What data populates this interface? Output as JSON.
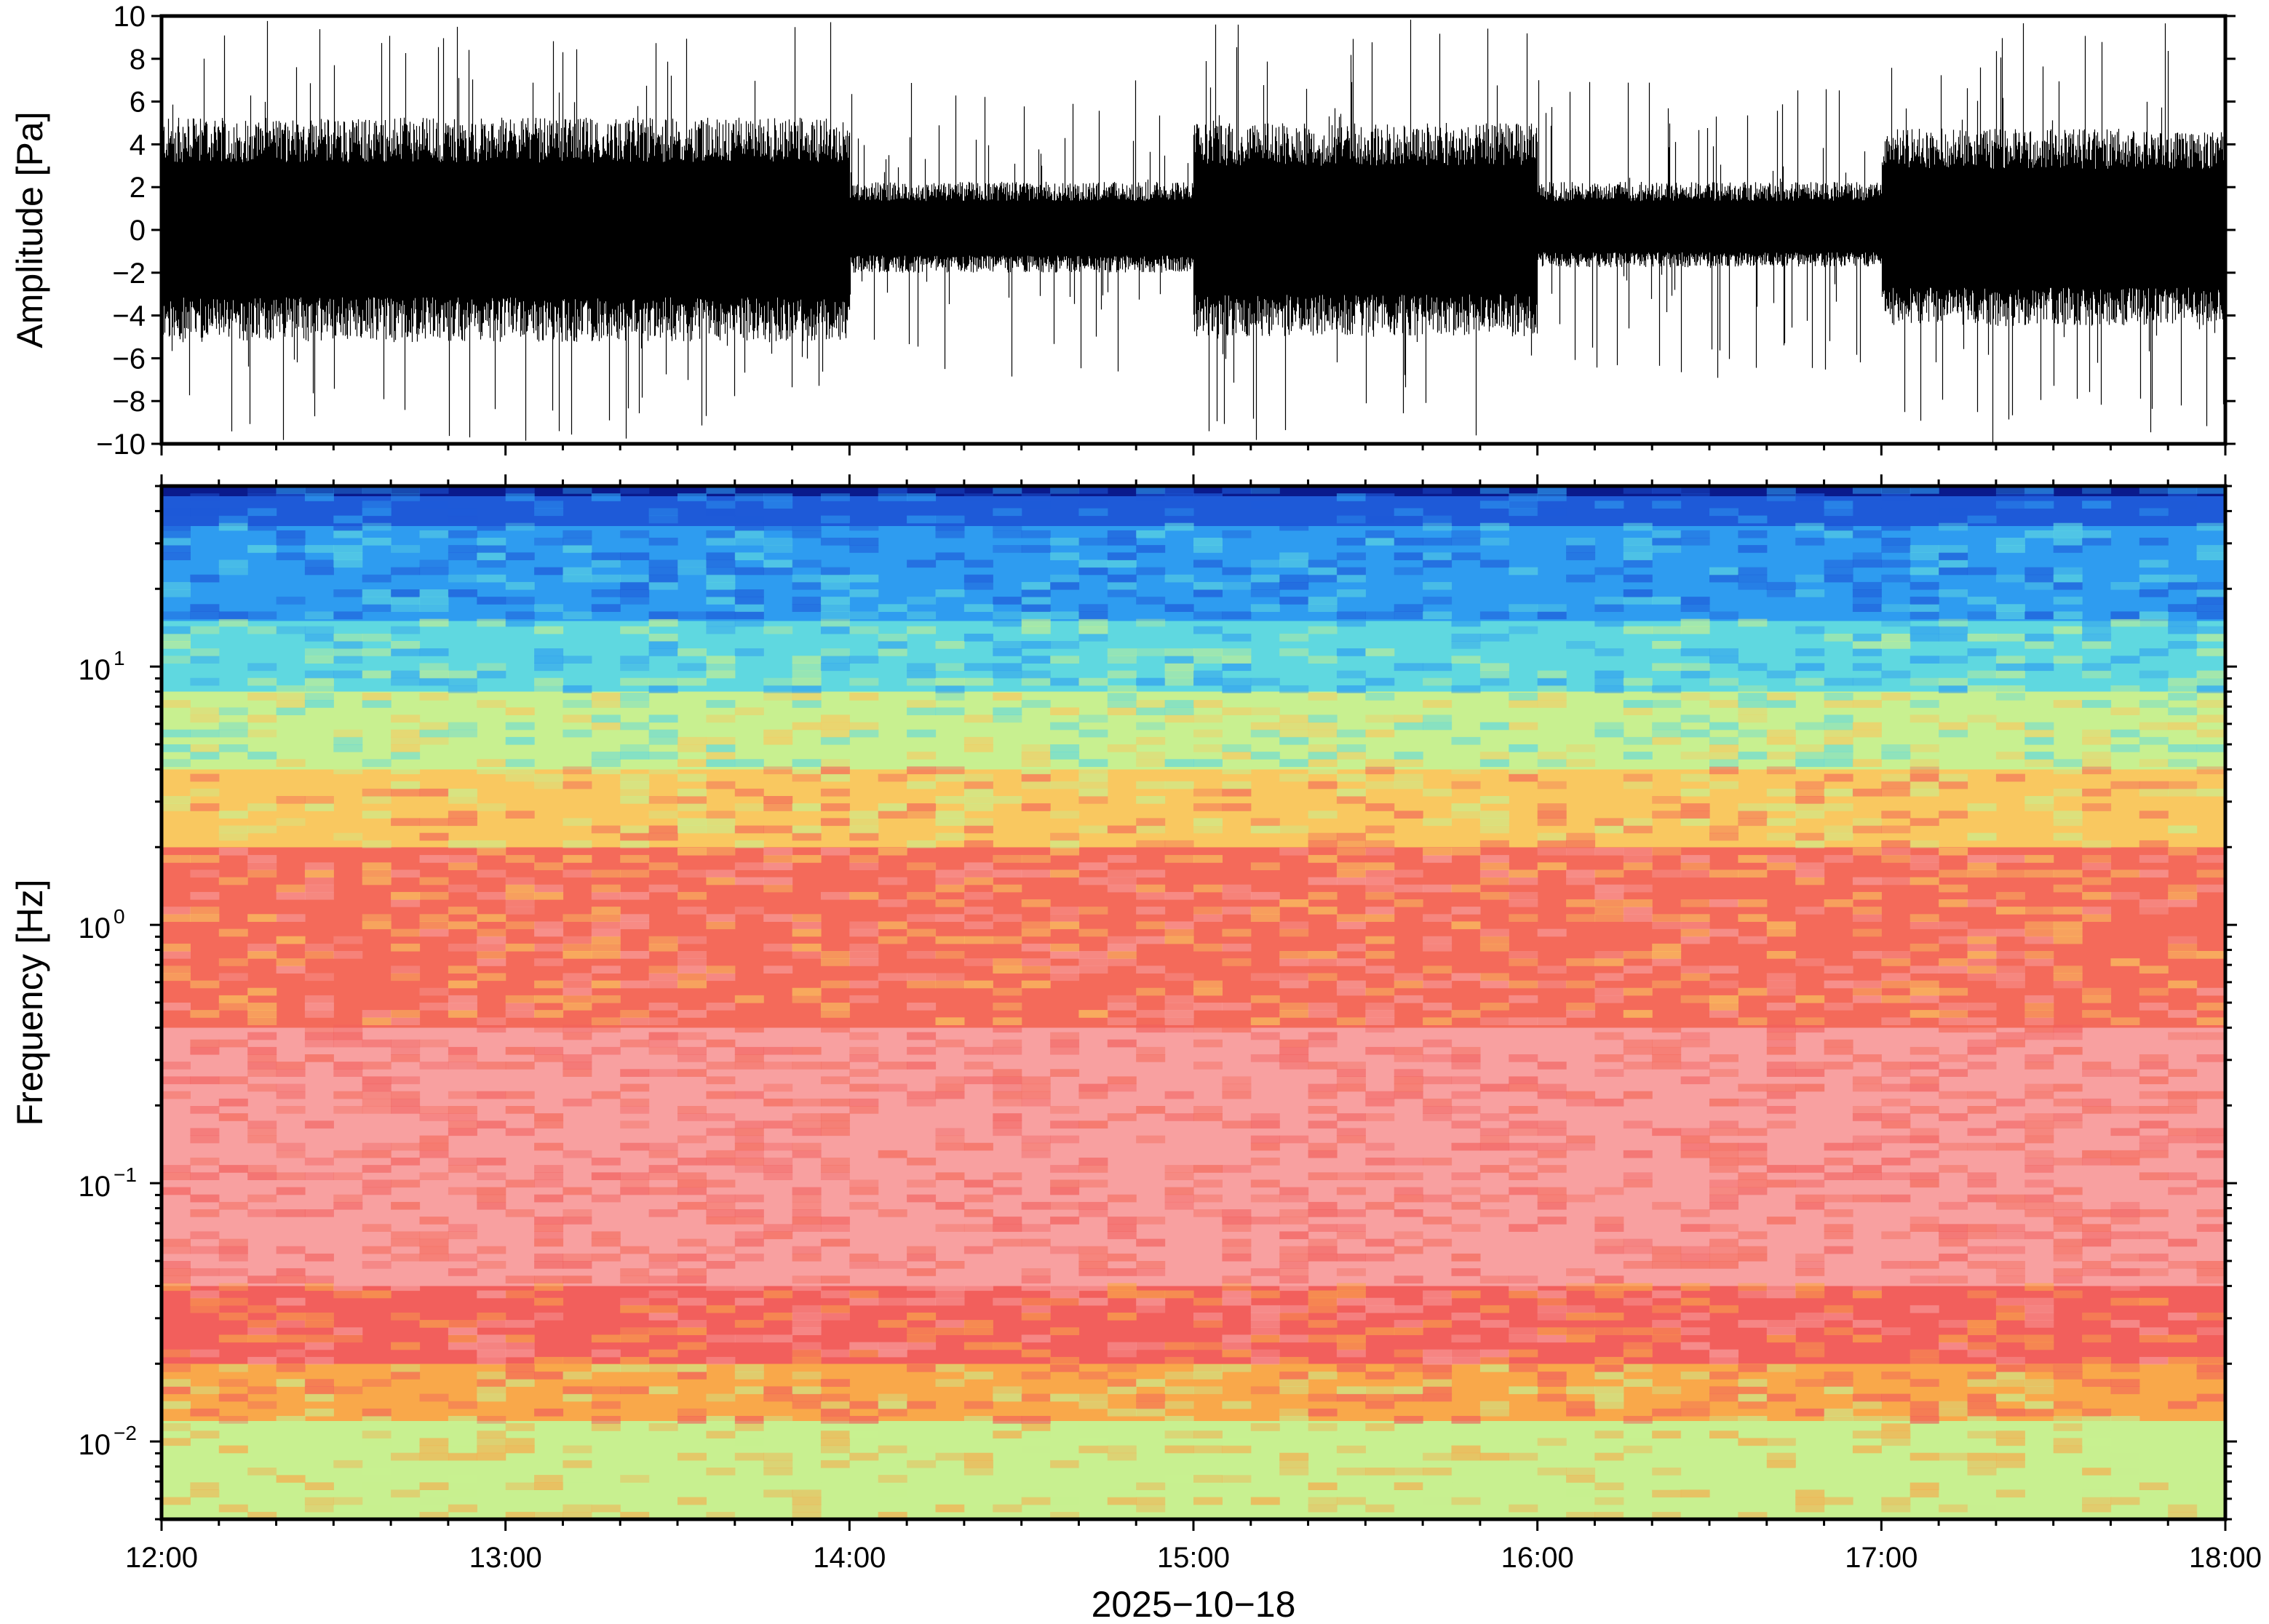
{
  "chart_data": [
    {
      "type": "line",
      "ylabel": "Amplitude [Pa]",
      "ylim": [
        -10,
        10
      ],
      "yticks": [
        "10",
        "8",
        "6",
        "4",
        "2",
        "0",
        "−2",
        "−4",
        "−6",
        "−8",
        "−10"
      ],
      "ytick_values": [
        10,
        8,
        6,
        4,
        2,
        0,
        -2,
        -4,
        -6,
        -8,
        -10
      ],
      "xlim": [
        "12:00",
        "18:00"
      ],
      "segments": [
        {
          "start": "12:00",
          "end": "14:00",
          "envelope": [
            -4.2,
            4.2
          ],
          "peak": 10
        },
        {
          "start": "14:00",
          "end": "15:00",
          "envelope": [
            -1.6,
            1.8
          ],
          "peak": 7
        },
        {
          "start": "15:00",
          "end": "16:00",
          "envelope": [
            -4.0,
            4.0
          ],
          "peak": 10
        },
        {
          "start": "16:00",
          "end": "17:00",
          "envelope": [
            -1.4,
            1.8
          ],
          "peak": 7
        },
        {
          "start": "17:00",
          "end": "18:00",
          "envelope": [
            -3.6,
            3.8
          ],
          "peak": 10
        }
      ],
      "color": "#000000"
    },
    {
      "type": "heatmap",
      "ylabel": "Frequency [Hz]",
      "yscale": "log",
      "ylim": [
        0.005,
        50
      ],
      "yticks": [
        {
          "base": "10",
          "exp": "1",
          "value": 10
        },
        {
          "base": "10",
          "exp": "0",
          "value": 1
        },
        {
          "base": "10",
          "exp": "−1",
          "value": 0.1
        },
        {
          "base": "10",
          "exp": "−2",
          "value": 0.01
        }
      ],
      "xlabel": "2025−10−18",
      "xticks": [
        "12:00",
        "13:00",
        "14:00",
        "15:00",
        "16:00",
        "17:00",
        "18:00"
      ],
      "xlim": [
        "12:00",
        "18:00"
      ],
      "colormap": [
        "#0a1a8c",
        "#1e5ad8",
        "#2e9cf0",
        "#5fd8e0",
        "#c8f090",
        "#f7e87a",
        "#f9a84a",
        "#f46a5a",
        "#f8a8a8"
      ],
      "frequency_bands": [
        {
          "f_min": 35,
          "f_max": 50,
          "color": "#1e5ad8"
        },
        {
          "f_min": 15,
          "f_max": 35,
          "color": "#2e9cf0"
        },
        {
          "f_min": 8,
          "f_max": 15,
          "color": "#5fd8e0"
        },
        {
          "f_min": 4,
          "f_max": 8,
          "color": "#c8f090"
        },
        {
          "f_min": 2,
          "f_max": 4,
          "color": "#f9c860"
        },
        {
          "f_min": 0.4,
          "f_max": 2,
          "color": "#f46a5a"
        },
        {
          "f_min": 0.04,
          "f_max": 0.4,
          "color": "#f8a0a0"
        },
        {
          "f_min": 0.02,
          "f_max": 0.04,
          "color": "#f25f5c"
        },
        {
          "f_min": 0.012,
          "f_max": 0.02,
          "color": "#f9a84a"
        },
        {
          "f_min": 0.005,
          "f_max": 0.012,
          "color": "#c8f090"
        }
      ]
    }
  ]
}
